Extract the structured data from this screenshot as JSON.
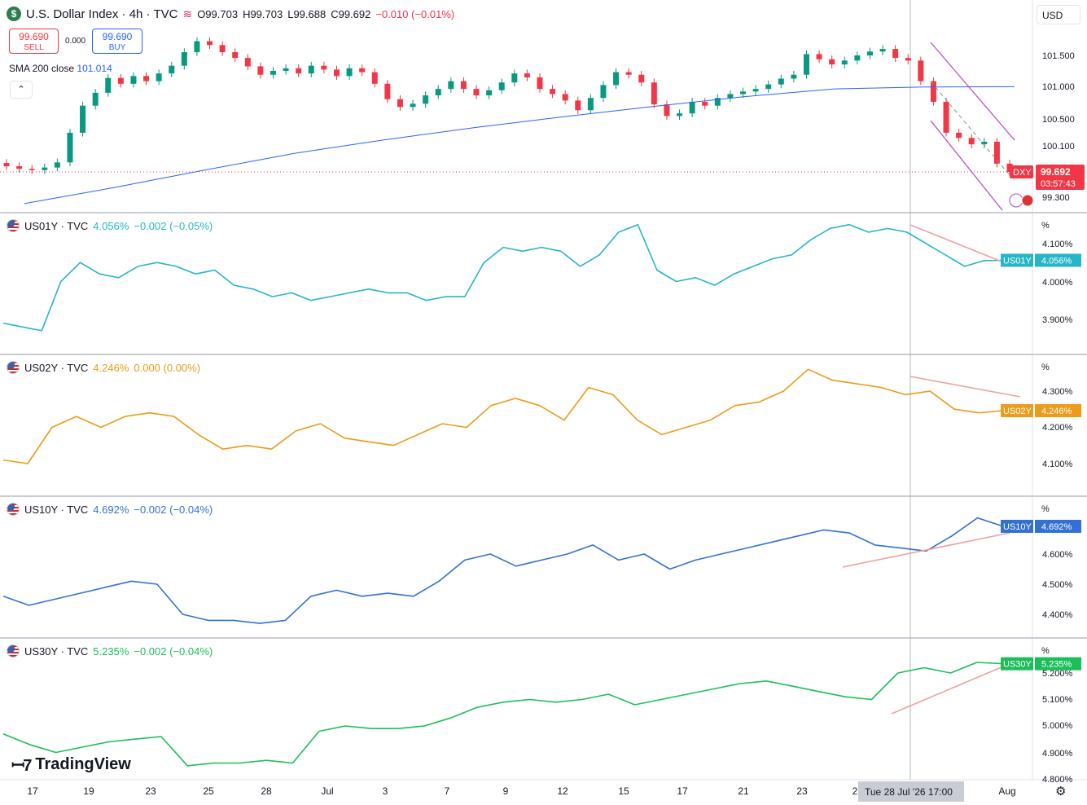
{
  "header": {
    "symbol_title": "U.S. Dollar Index · 4h · TVC",
    "symbol_icon": "dollar-icon",
    "ohlc": {
      "o": "O99.703",
      "h": "H99.703",
      "l": "L99.688",
      "c": "C99.692",
      "chg": "−0.010 (−0.01%)"
    },
    "sell_price": "99.690",
    "sell_label": "SELL",
    "spread": "0.000",
    "buy_price": "99.690",
    "buy_label": "BUY",
    "sma_label": "SMA 200 close",
    "sma_value": "101.014",
    "collapse_icon": "chevron-up-icon",
    "currency": "USD"
  },
  "colors": {
    "up": "#089981",
    "down": "#f23645",
    "sma": "#2962ff",
    "us01y": "#26b5c9",
    "us02y": "#ee9a1a",
    "us10y": "#3271d4",
    "us30y": "#1dbe5a",
    "trend_red": "#f0a0a0",
    "channel": "#b845c8"
  },
  "x_axis": {
    "labels": [
      "17",
      "19",
      "23",
      "25",
      "28",
      "Jul",
      "3",
      "7",
      "9",
      "12",
      "15",
      "17",
      "21",
      "23",
      "2",
      "Aug"
    ],
    "crosshair_label": "Tue 28 Jul '26   17:00"
  },
  "panes": [
    {
      "id": "dxy",
      "label": "",
      "pct": "",
      "price_tag": "99.692",
      "price_sub": "03:57:43",
      "badge": "DXY",
      "ticks": [
        "101.500",
        "101.000",
        "100.500",
        "100.100",
        "99.300"
      ]
    },
    {
      "id": "us01y",
      "label": "US01Y · TVC",
      "value": "4.056%",
      "change": "−0.002 (−0.05%)",
      "badge": "US01Y",
      "pct": "%",
      "ticks": [
        "4.100%",
        "4.000%",
        "3.900%"
      ]
    },
    {
      "id": "us02y",
      "label": "US02Y · TVC",
      "value": "4.246%",
      "change": "0.000 (0.00%)",
      "badge": "US02Y",
      "pct": "%",
      "ticks": [
        "4.300%",
        "4.200%",
        "4.100%"
      ]
    },
    {
      "id": "us10y",
      "label": "US10Y · TVC",
      "value": "4.692%",
      "change": "−0.002 (−0.04%)",
      "badge": "US10Y",
      "pct": "%",
      "ticks": [
        "4.600%",
        "4.500%",
        "4.400%"
      ]
    },
    {
      "id": "us30y",
      "label": "US30Y · TVC",
      "value": "5.235%",
      "change": "−0.002 (−0.04%)",
      "badge": "US30Y",
      "pct": "%",
      "ticks": [
        "5.200%",
        "5.100%",
        "5.000%",
        "4.900%",
        "4.800%"
      ]
    }
  ],
  "brand": "TradingView",
  "settings_icon": "gear-icon",
  "chart_data": [
    {
      "type": "candlestick",
      "title": "U.S. Dollar Index · 4h · TVC",
      "ylim": [
        99.05,
        101.95
      ],
      "last": 99.692,
      "close": [
        99.78,
        99.74,
        99.72,
        99.76,
        99.84,
        100.3,
        100.72,
        100.92,
        101.15,
        101.06,
        101.18,
        101.1,
        101.22,
        101.34,
        101.55,
        101.72,
        101.66,
        101.55,
        101.46,
        101.33,
        101.2,
        101.26,
        101.3,
        101.22,
        101.34,
        101.28,
        101.18,
        101.3,
        101.24,
        101.06,
        100.82,
        100.7,
        100.75,
        100.88,
        100.98,
        101.1,
        100.98,
        100.88,
        100.96,
        101.08,
        101.22,
        101.16,
        100.98,
        100.9,
        100.8,
        100.65,
        100.84,
        101.04,
        101.24,
        101.2,
        101.08,
        100.74,
        100.56,
        100.6,
        100.78,
        100.72,
        100.84,
        100.9,
        100.94,
        100.98,
        101.05,
        101.14,
        101.2,
        101.52,
        101.44,
        101.36,
        101.42,
        101.5,
        101.56,
        101.6,
        101.46,
        101.42,
        101.1,
        100.78,
        100.3,
        100.22,
        100.12,
        100.16,
        99.82,
        99.69
      ],
      "sma200": [
        99.2,
        99.45,
        99.72,
        99.98,
        100.19,
        100.38,
        100.55,
        100.71,
        100.86,
        100.98,
        101.01,
        101.014
      ]
    },
    {
      "type": "line",
      "name": "US01Y",
      "ylim": [
        3.81,
        4.19
      ],
      "values": [
        3.89,
        3.88,
        3.87,
        4.0,
        4.05,
        4.02,
        4.01,
        4.04,
        4.05,
        4.04,
        4.02,
        4.03,
        3.99,
        3.98,
        3.96,
        3.97,
        3.95,
        3.96,
        3.97,
        3.98,
        3.97,
        3.97,
        3.95,
        3.96,
        3.96,
        4.05,
        4.09,
        4.08,
        4.09,
        4.08,
        4.04,
        4.07,
        4.13,
        4.15,
        4.03,
        4.0,
        4.01,
        3.99,
        4.02,
        4.04,
        4.06,
        4.07,
        4.11,
        4.14,
        4.15,
        4.13,
        4.14,
        4.13,
        4.1,
        4.07,
        4.04,
        4.055,
        4.056
      ]
    },
    {
      "type": "line",
      "name": "US02Y",
      "ylim": [
        4.04,
        4.36
      ],
      "values": [
        4.11,
        4.1,
        4.2,
        4.23,
        4.2,
        4.23,
        4.24,
        4.23,
        4.18,
        4.14,
        4.15,
        4.14,
        4.19,
        4.21,
        4.17,
        4.16,
        4.15,
        4.18,
        4.21,
        4.2,
        4.26,
        4.28,
        4.26,
        4.22,
        4.31,
        4.29,
        4.22,
        4.18,
        4.2,
        4.22,
        4.26,
        4.27,
        4.3,
        4.36,
        4.33,
        4.32,
        4.31,
        4.29,
        4.3,
        4.25,
        4.24,
        4.246
      ]
    },
    {
      "type": "line",
      "name": "US10Y",
      "ylim": [
        4.34,
        4.76
      ],
      "values": [
        4.46,
        4.43,
        4.45,
        4.47,
        4.49,
        4.51,
        4.5,
        4.4,
        4.38,
        4.38,
        4.37,
        4.38,
        4.46,
        4.48,
        4.46,
        4.47,
        4.46,
        4.51,
        4.58,
        4.6,
        4.56,
        4.58,
        4.6,
        4.63,
        4.58,
        4.6,
        4.55,
        4.58,
        4.6,
        4.62,
        4.64,
        4.66,
        4.68,
        4.67,
        4.63,
        4.62,
        4.61,
        4.66,
        4.72,
        4.692
      ]
    },
    {
      "type": "line",
      "name": "US30Y",
      "ylim": [
        4.8,
        5.3
      ],
      "values": [
        4.97,
        4.93,
        4.9,
        4.92,
        4.94,
        4.95,
        4.96,
        4.85,
        4.86,
        4.86,
        4.87,
        4.86,
        4.98,
        5.0,
        4.99,
        4.99,
        5.0,
        5.03,
        5.07,
        5.09,
        5.1,
        5.09,
        5.1,
        5.12,
        5.08,
        5.1,
        5.12,
        5.14,
        5.16,
        5.17,
        5.15,
        5.13,
        5.11,
        5.1,
        5.2,
        5.22,
        5.2,
        5.24,
        5.235
      ]
    }
  ]
}
